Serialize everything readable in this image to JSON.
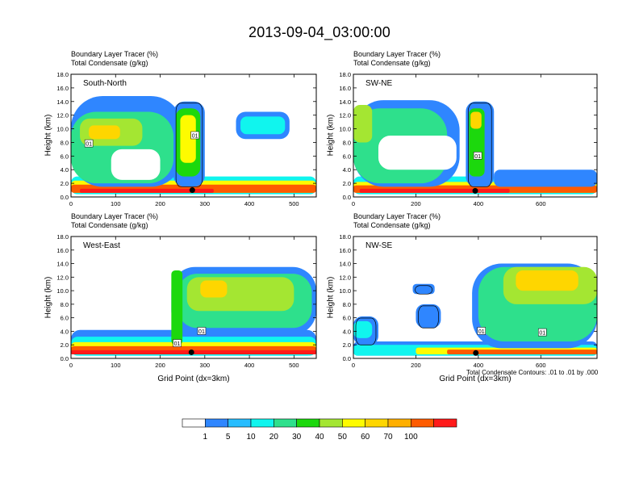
{
  "title": "2013-09-04_03:00:00",
  "colors": {
    "levels": [
      "#ffffff",
      "#2f86ff",
      "#27bdff",
      "#10f5ee",
      "#2ee08c",
      "#1cd80d",
      "#a4e632",
      "#fefb00",
      "#fed600",
      "#ffaf00",
      "#fe5b00",
      "#ff1a1a"
    ],
    "contour": "#000000"
  },
  "colorbar": {
    "labels": [
      "1",
      "5",
      "10",
      "20",
      "30",
      "40",
      "50",
      "60",
      "70",
      "100"
    ]
  },
  "footnote": "Total Condensate Contours: .01 to .01 by .000",
  "chart_data": [
    {
      "type": "heatmap",
      "name": "South-North",
      "header": [
        "Boundary Layer Tracer   (%)",
        "Total Condensate   (g/kg)"
      ],
      "ylabel": "Height (km)",
      "xlabel": "",
      "xlim": [
        0,
        550
      ],
      "ylim": [
        0,
        18
      ],
      "xticks": [
        "0",
        "100",
        "200",
        "300",
        "400",
        "500"
      ],
      "xtick_values": [
        0,
        100,
        200,
        300,
        400,
        500
      ],
      "yticks": [
        "0.0",
        "2.0",
        "4.0",
        "6.0",
        "8.0",
        "10.0",
        "12.0",
        "14.0",
        "16.0",
        "18.0"
      ],
      "contour_labels": [
        {
          "text": "01",
          "x": 40,
          "y": 7.8
        },
        {
          "text": "01",
          "x": 278,
          "y": 9.0
        }
      ],
      "marker": {
        "x": 272,
        "y": 1.0
      },
      "features": [
        {
          "level": 3,
          "x": [
            0,
            550
          ],
          "y": [
            0.4,
            3.0
          ]
        },
        {
          "level": 7,
          "x": [
            0,
            550
          ],
          "y": [
            0.6,
            2.4
          ]
        },
        {
          "level": 10,
          "x": [
            0,
            550
          ],
          "y": [
            0.6,
            1.8
          ]
        },
        {
          "level": 11,
          "x": [
            20,
            320
          ],
          "y": [
            0.6,
            1.2
          ]
        },
        {
          "level": 1,
          "x": [
            0,
            250
          ],
          "y": [
            1.5,
            14.8
          ]
        },
        {
          "level": 4,
          "x": [
            0,
            230
          ],
          "y": [
            2.0,
            12.5
          ]
        },
        {
          "level": 6,
          "x": [
            20,
            160
          ],
          "y": [
            7.5,
            11.5
          ]
        },
        {
          "level": 8,
          "x": [
            40,
            110
          ],
          "y": [
            8.5,
            10.5
          ]
        },
        {
          "level": 1,
          "x": [
            230,
            300
          ],
          "y": [
            1.5,
            14.0
          ]
        },
        {
          "level": 5,
          "x": [
            235,
            290
          ],
          "y": [
            3.0,
            13.0
          ]
        },
        {
          "level": 7,
          "x": [
            245,
            280
          ],
          "y": [
            5.0,
            12.0
          ]
        },
        {
          "level": 1,
          "x": [
            370,
            490
          ],
          "y": [
            8.5,
            12.5
          ]
        },
        {
          "level": 3,
          "x": [
            380,
            480
          ],
          "y": [
            9.2,
            11.8
          ]
        },
        {
          "level": 0,
          "x": [
            90,
            200
          ],
          "y": [
            2.5,
            7.0
          ]
        }
      ]
    },
    {
      "type": "heatmap",
      "name": "SW-NE",
      "header": [
        "Boundary Layer Tracer   (%)",
        "Total Condensate   (g/kg)"
      ],
      "ylabel": "Height (km)",
      "xlabel": "",
      "xlim": [
        0,
        780
      ],
      "ylim": [
        0,
        18
      ],
      "xticks": [
        "0",
        "200",
        "400",
        "600"
      ],
      "xtick_values": [
        0,
        200,
        400,
        600
      ],
      "yticks": [
        "0.0",
        "2.0",
        "4.0",
        "6.0",
        "8.0",
        "10.0",
        "12.0",
        "14.0",
        "16.0",
        "18.0"
      ],
      "contour_labels": [
        {
          "text": "01",
          "x": 398,
          "y": 6.0
        }
      ],
      "marker": {
        "x": 390,
        "y": 0.9
      },
      "features": [
        {
          "level": 3,
          "x": [
            0,
            780
          ],
          "y": [
            0.4,
            3.0
          ]
        },
        {
          "level": 7,
          "x": [
            0,
            780
          ],
          "y": [
            0.6,
            2.2
          ]
        },
        {
          "level": 10,
          "x": [
            0,
            780
          ],
          "y": [
            0.6,
            1.7
          ]
        },
        {
          "level": 11,
          "x": [
            20,
            500
          ],
          "y": [
            0.6,
            1.2
          ]
        },
        {
          "level": 1,
          "x": [
            0,
            340
          ],
          "y": [
            1.5,
            14.2
          ]
        },
        {
          "level": 4,
          "x": [
            0,
            300
          ],
          "y": [
            2.0,
            13.0
          ]
        },
        {
          "level": 6,
          "x": [
            0,
            60
          ],
          "y": [
            8.0,
            13.5
          ]
        },
        {
          "level": 1,
          "x": [
            360,
            450
          ],
          "y": [
            1.5,
            14.0
          ]
        },
        {
          "level": 5,
          "x": [
            370,
            420
          ],
          "y": [
            3.0,
            13.0
          ]
        },
        {
          "level": 8,
          "x": [
            375,
            410
          ],
          "y": [
            10.0,
            12.5
          ]
        },
        {
          "level": 1,
          "x": [
            450,
            780
          ],
          "y": [
            1.5,
            4.0
          ]
        },
        {
          "level": 0,
          "x": [
            80,
            330
          ],
          "y": [
            4.0,
            9.0
          ]
        }
      ]
    },
    {
      "type": "heatmap",
      "name": "West-East",
      "header": [
        "Boundary Layer Tracer   (%)",
        "Total Condensate   (g/kg)"
      ],
      "ylabel": "Height (km)",
      "xlabel": "Grid Point (dx=3km)",
      "xlim": [
        0,
        550
      ],
      "ylim": [
        0,
        18
      ],
      "xticks": [
        "0",
        "100",
        "200",
        "300",
        "400",
        "500"
      ],
      "xtick_values": [
        0,
        100,
        200,
        300,
        400,
        500
      ],
      "yticks": [
        "0.0",
        "2.0",
        "4.0",
        "6.0",
        "8.0",
        "10.0",
        "12.0",
        "14.0",
        "16.0",
        "18.0"
      ],
      "contour_labels": [
        {
          "text": "01",
          "x": 238,
          "y": 2.2
        },
        {
          "text": "01",
          "x": 293,
          "y": 4.0
        }
      ],
      "marker": {
        "x": 270,
        "y": 0.9
      },
      "features": [
        {
          "level": 1,
          "x": [
            0,
            550
          ],
          "y": [
            0.4,
            4.2
          ]
        },
        {
          "level": 3,
          "x": [
            0,
            550
          ],
          "y": [
            0.4,
            3.2
          ]
        },
        {
          "level": 7,
          "x": [
            0,
            550
          ],
          "y": [
            0.6,
            2.4
          ]
        },
        {
          "level": 10,
          "x": [
            0,
            550
          ],
          "y": [
            0.6,
            1.8
          ]
        },
        {
          "level": 11,
          "x": [
            0,
            550
          ],
          "y": [
            0.6,
            1.2
          ]
        },
        {
          "level": 1,
          "x": [
            225,
            550
          ],
          "y": [
            3.5,
            13.5
          ]
        },
        {
          "level": 4,
          "x": [
            240,
            540
          ],
          "y": [
            4.5,
            12.5
          ]
        },
        {
          "level": 6,
          "x": [
            260,
            500
          ],
          "y": [
            7.0,
            12.0
          ]
        },
        {
          "level": 8,
          "x": [
            290,
            350
          ],
          "y": [
            9.0,
            11.5
          ]
        },
        {
          "level": 5,
          "x": [
            225,
            250
          ],
          "y": [
            2.0,
            13.0
          ]
        }
      ]
    },
    {
      "type": "heatmap",
      "name": "NW-SE",
      "header": [
        "Boundary Layer Tracer   (%)",
        "Total Condensate   (g/kg)"
      ],
      "ylabel": "Height (km)",
      "xlabel": "Grid Point (dx=3km)",
      "xlim": [
        0,
        780
      ],
      "ylim": [
        0,
        18
      ],
      "xticks": [
        "0",
        "200",
        "400",
        "600"
      ],
      "xtick_values": [
        0,
        200,
        400,
        600
      ],
      "yticks": [
        "0.0",
        "2.0",
        "4.0",
        "6.0",
        "8.0",
        "10.0",
        "12.0",
        "14.0",
        "16.0",
        "18.0"
      ],
      "contour_labels": [
        {
          "text": "01",
          "x": 410,
          "y": 4.0
        },
        {
          "text": "01",
          "x": 605,
          "y": 3.8
        }
      ],
      "marker": {
        "x": 392,
        "y": 0.8
      },
      "features": [
        {
          "level": 1,
          "x": [
            0,
            780
          ],
          "y": [
            0.4,
            2.5
          ]
        },
        {
          "level": 3,
          "x": [
            0,
            780
          ],
          "y": [
            0.4,
            2.0
          ]
        },
        {
          "level": 7,
          "x": [
            200,
            780
          ],
          "y": [
            0.6,
            1.6
          ]
        },
        {
          "level": 10,
          "x": [
            300,
            780
          ],
          "y": [
            0.6,
            1.3
          ]
        },
        {
          "level": 1,
          "x": [
            0,
            80
          ],
          "y": [
            2.0,
            6.2
          ]
        },
        {
          "level": 3,
          "x": [
            0,
            60
          ],
          "y": [
            3.0,
            5.5
          ]
        },
        {
          "level": 1,
          "x": [
            200,
            280
          ],
          "y": [
            4.5,
            8.0
          ]
        },
        {
          "level": 1,
          "x": [
            380,
            780
          ],
          "y": [
            1.5,
            14.0
          ]
        },
        {
          "level": 4,
          "x": [
            400,
            780
          ],
          "y": [
            2.5,
            13.5
          ]
        },
        {
          "level": 6,
          "x": [
            480,
            780
          ],
          "y": [
            8.0,
            13.5
          ]
        },
        {
          "level": 8,
          "x": [
            520,
            720
          ],
          "y": [
            10.0,
            13.0
          ]
        },
        {
          "level": 1,
          "x": [
            190,
            260
          ],
          "y": [
            9.5,
            11.0
          ]
        }
      ]
    }
  ]
}
